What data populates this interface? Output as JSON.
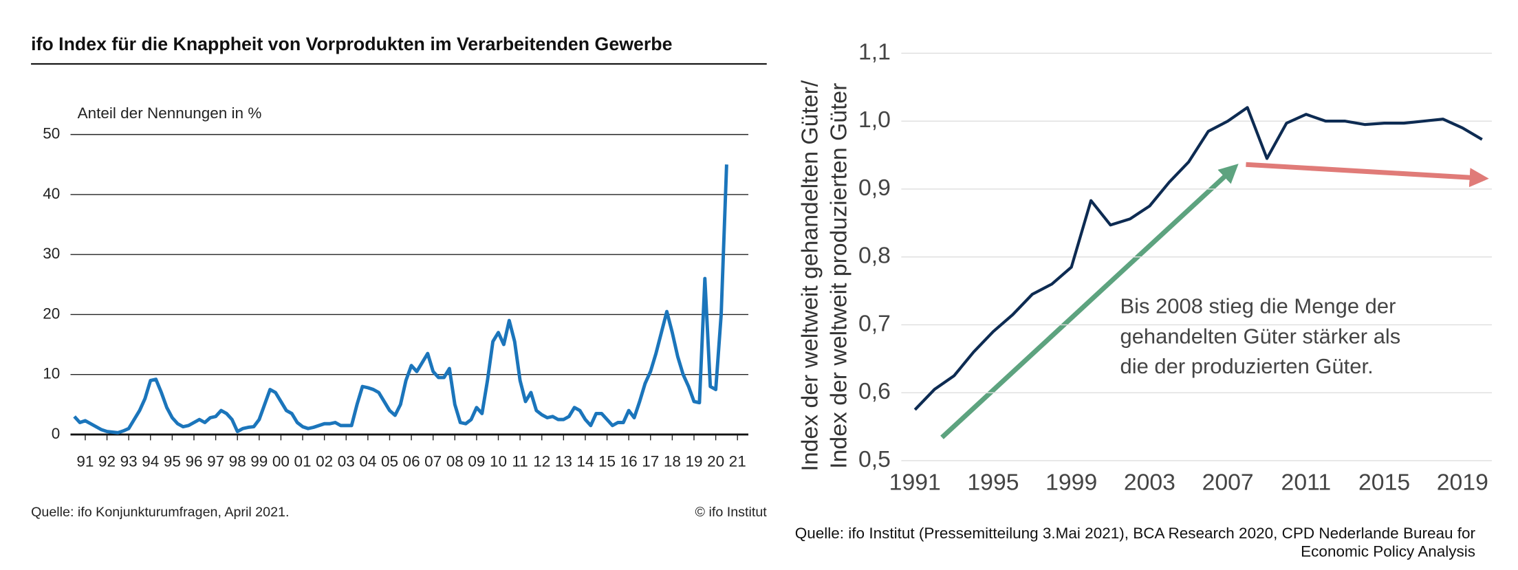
{
  "chart_data": [
    {
      "type": "line",
      "title": "ifo Index für die Knappheit von Vorprodukten im Verarbeitenden Gewerbe",
      "subtitle": "Anteil der Nennungen in %",
      "source": "Quelle: ifo Konjunkturumfragen, April 2021.",
      "credit": "© ifo Institut",
      "x": [
        1991,
        1991.25,
        1991.5,
        1991.75,
        1992,
        1992.25,
        1992.5,
        1992.75,
        1993,
        1993.25,
        1993.5,
        1993.75,
        1994,
        1994.25,
        1994.5,
        1994.75,
        1995,
        1995.25,
        1995.5,
        1995.75,
        1996,
        1996.25,
        1996.5,
        1996.75,
        1997,
        1997.25,
        1997.5,
        1997.75,
        1998,
        1998.25,
        1998.5,
        1998.75,
        1999,
        1999.25,
        1999.5,
        1999.75,
        2000,
        2000.25,
        2000.5,
        2000.75,
        2001,
        2001.25,
        2001.5,
        2001.75,
        2002,
        2002.25,
        2002.5,
        2002.75,
        2003,
        2003.25,
        2003.5,
        2003.75,
        2004,
        2004.25,
        2004.5,
        2004.75,
        2005,
        2005.25,
        2005.5,
        2005.75,
        2006,
        2006.25,
        2006.5,
        2006.75,
        2007,
        2007.25,
        2007.5,
        2007.75,
        2008,
        2008.25,
        2008.5,
        2008.75,
        2009,
        2009.25,
        2009.5,
        2009.75,
        2010,
        2010.25,
        2010.5,
        2010.75,
        2011,
        2011.25,
        2011.5,
        2011.75,
        2012,
        2012.25,
        2012.5,
        2012.75,
        2013,
        2013.25,
        2013.5,
        2013.75,
        2014,
        2014.25,
        2014.5,
        2014.75,
        2015,
        2015.25,
        2015.5,
        2015.75,
        2016,
        2016.25,
        2016.5,
        2016.75,
        2017,
        2017.25,
        2017.5,
        2017.75,
        2018,
        2018.25,
        2018.5,
        2018.75,
        2019,
        2019.25,
        2019.5,
        2019.75,
        2020,
        2020.25,
        2020.5,
        2020.75,
        2021
      ],
      "series": [
        {
          "name": "ifo Index",
          "color": "#1b75bb",
          "values": [
            3,
            2,
            2.3,
            1.8,
            1.3,
            0.8,
            0.5,
            0.4,
            0.3,
            0.6,
            1,
            2.5,
            4,
            6,
            9,
            9.2,
            7,
            4.5,
            2.8,
            1.8,
            1.3,
            1.5,
            2,
            2.5,
            2,
            2.8,
            3,
            4,
            3.5,
            2.5,
            0.5,
            1,
            1.2,
            1.3,
            2.5,
            5,
            7.5,
            7,
            5.5,
            4,
            3.5,
            2,
            1.3,
            1,
            1.2,
            1.5,
            1.8,
            1.8,
            2,
            1.5,
            1.5,
            1.5,
            5,
            8,
            7.8,
            7.5,
            7,
            5.5,
            4,
            3.2,
            5,
            9,
            11.5,
            10.5,
            12,
            13.5,
            10.5,
            9.5,
            9.5,
            11,
            5,
            2,
            1.8,
            2.5,
            4.5,
            3.5,
            9,
            15.5,
            17,
            15,
            19,
            15.5,
            9,
            5.5,
            7,
            4,
            3.3,
            2.8,
            3,
            2.5,
            2.5,
            3,
            4.5,
            4,
            2.5,
            1.5,
            3.5,
            3.5,
            2.5,
            1.5,
            2,
            2,
            4,
            2.8,
            5.5,
            8.5,
            10.5,
            13.5,
            17,
            20.5,
            17,
            13,
            10,
            8,
            5.5,
            5.3,
            26,
            8,
            7.5,
            20,
            45
          ]
        }
      ],
      "xlim": [
        1991,
        2022
      ],
      "xticks": [
        {
          "value": 1991.5,
          "label": "91"
        },
        {
          "value": 1992.5,
          "label": "92"
        },
        {
          "value": 1993.5,
          "label": "93"
        },
        {
          "value": 1994.5,
          "label": "94"
        },
        {
          "value": 1995.5,
          "label": "95"
        },
        {
          "value": 1996.5,
          "label": "96"
        },
        {
          "value": 1997.5,
          "label": "97"
        },
        {
          "value": 1998.5,
          "label": "98"
        },
        {
          "value": 1999.5,
          "label": "99"
        },
        {
          "value": 2000.5,
          "label": "00"
        },
        {
          "value": 2001.5,
          "label": "01"
        },
        {
          "value": 2002.5,
          "label": "02"
        },
        {
          "value": 2003.5,
          "label": "03"
        },
        {
          "value": 2004.5,
          "label": "04"
        },
        {
          "value": 2005.5,
          "label": "05"
        },
        {
          "value": 2006.5,
          "label": "06"
        },
        {
          "value": 2007.5,
          "label": "07"
        },
        {
          "value": 2008.5,
          "label": "08"
        },
        {
          "value": 2009.5,
          "label": "09"
        },
        {
          "value": 2010.5,
          "label": "10"
        },
        {
          "value": 2011.5,
          "label": "11"
        },
        {
          "value": 2012.5,
          "label": "12"
        },
        {
          "value": 2013.5,
          "label": "13"
        },
        {
          "value": 2014.5,
          "label": "14"
        },
        {
          "value": 2015.5,
          "label": "15"
        },
        {
          "value": 2016.5,
          "label": "16"
        },
        {
          "value": 2017.5,
          "label": "17"
        },
        {
          "value": 2018.5,
          "label": "18"
        },
        {
          "value": 2019.5,
          "label": "19"
        },
        {
          "value": 2020.5,
          "label": "20"
        },
        {
          "value": 2021.5,
          "label": "21"
        }
      ],
      "ylim": [
        0,
        50
      ],
      "yticks": [
        0,
        10,
        20,
        30,
        40,
        50
      ],
      "grid": true
    },
    {
      "type": "line",
      "ylabel": [
        "Index der weltweit gehandelten Güter/",
        "Index der weltweit produzierten Güter"
      ],
      "annotation": [
        "Bis 2008 stieg die Menge der",
        "gehandelten Güter stärker als",
        "die der produzierten Güter."
      ],
      "source": [
        "Quelle: ifo Institut (Pressemitteilung 3.Mai 2021), BCA Research 2020, CPD Nederlande Bureau for",
        "Economic Policy Analysis"
      ],
      "x": [
        1991,
        1992,
        1993,
        1994,
        1995,
        1996,
        1997,
        1998,
        1999,
        2000,
        2001,
        2002,
        2003,
        2004,
        2005,
        2006,
        2007,
        2008,
        2009,
        2010,
        2011,
        2012,
        2013,
        2014,
        2015,
        2016,
        2017,
        2018,
        2019,
        2020
      ],
      "series": [
        {
          "name": "Index",
          "color": "#0d2b52",
          "values": [
            0.575,
            0.605,
            0.625,
            0.66,
            0.69,
            0.715,
            0.745,
            0.76,
            0.785,
            0.883,
            0.847,
            0.856,
            0.875,
            0.91,
            0.94,
            0.985,
            1.0,
            1.02,
            0.945,
            0.997,
            1.01,
            1.0,
            1.0,
            0.995,
            0.997,
            0.997,
            1.0,
            1.003,
            0.99,
            0.973
          ]
        }
      ],
      "xlim": [
        1990.5,
        2020.5
      ],
      "xticks": [
        1991,
        1995,
        1999,
        2003,
        2007,
        2011,
        2015,
        2019
      ],
      "ylim": [
        0.5,
        1.1
      ],
      "yticks": [
        {
          "value": 0.5,
          "label": "0,5"
        },
        {
          "value": 0.6,
          "label": "0,6"
        },
        {
          "value": 0.7,
          "label": "0,7"
        },
        {
          "value": 0.8,
          "label": "0,8"
        },
        {
          "value": 0.9,
          "label": "0,9"
        },
        {
          "value": 1.0,
          "label": "1,0"
        },
        {
          "value": 1.1,
          "label": "1,1"
        }
      ],
      "grid": true
    }
  ]
}
